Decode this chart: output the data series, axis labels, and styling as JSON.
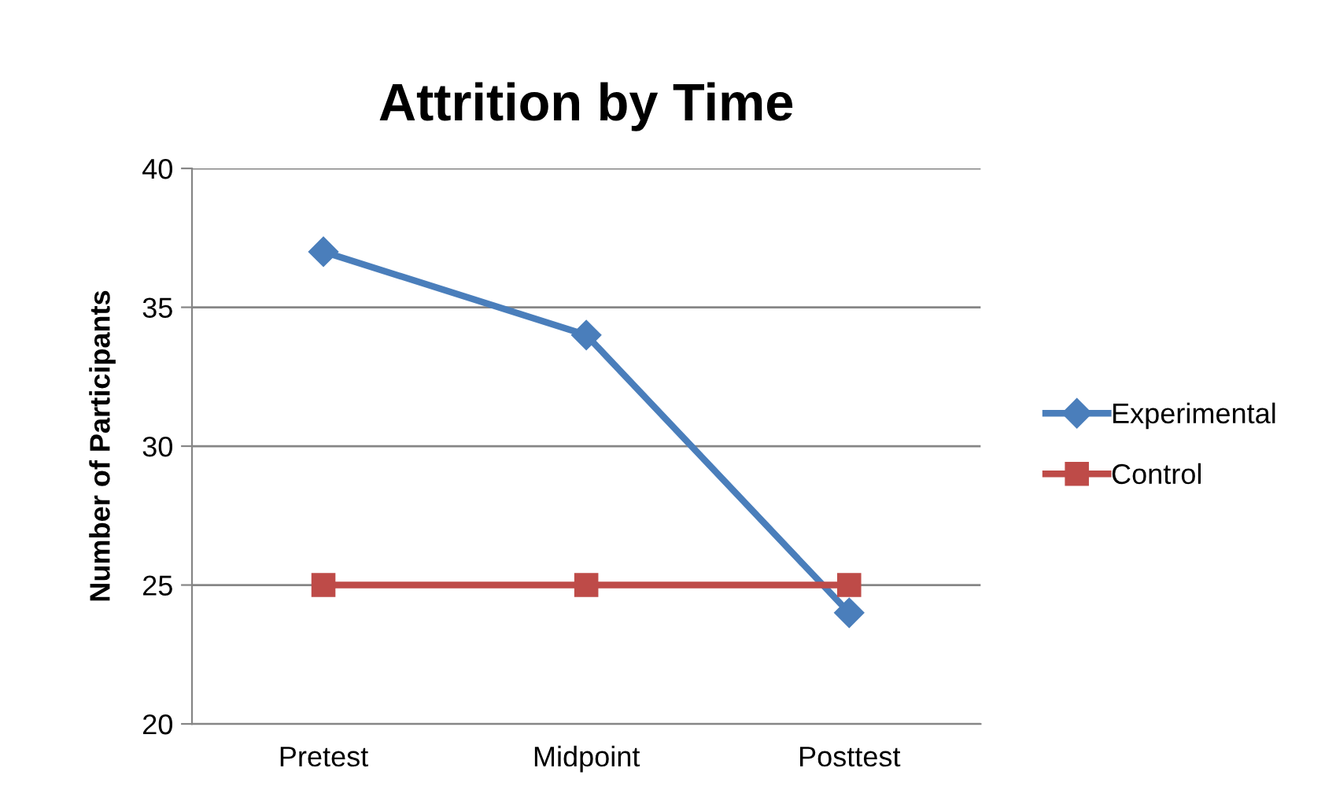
{
  "chart_data": {
    "type": "line",
    "title": "Attrition by Time",
    "ylabel": "Number of Participants",
    "categories": [
      "Pretest",
      "Midpoint",
      "Posttest"
    ],
    "series": [
      {
        "name": "Experimental",
        "color": "#4a7ebb",
        "values": [
          37,
          34,
          24
        ],
        "marker": "diamond"
      },
      {
        "name": "Control",
        "color": "#be4b48",
        "values": [
          25,
          25,
          25
        ],
        "marker": "square"
      }
    ],
    "ylim": [
      20,
      40
    ],
    "yticks": [
      20,
      25,
      30,
      35,
      40
    ],
    "grid": "y",
    "legend": "right",
    "line_style": "solid"
  }
}
